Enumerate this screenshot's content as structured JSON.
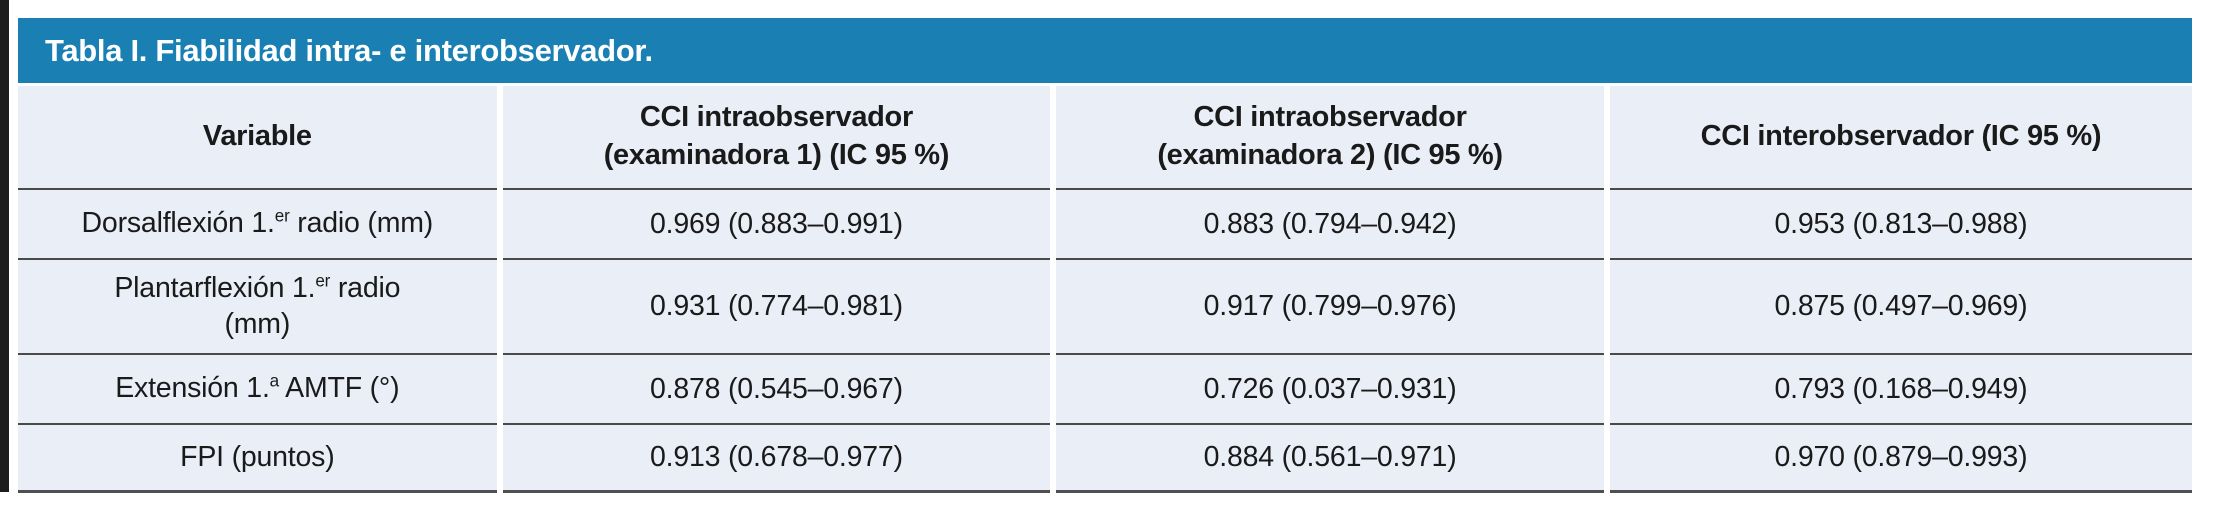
{
  "title": "Tabla I. Fiabilidad intra- e interobservador.",
  "colors": {
    "title_bar_bg": "#1a7fb2",
    "title_text": "#ffffff",
    "cell_bg": "#e9eef7",
    "rule": "#4a4a4a",
    "text": "#1a1a1a"
  },
  "table": {
    "headers": [
      {
        "line1": "Variable",
        "line2": ""
      },
      {
        "line1": "CCI intraobservador",
        "line2": "(examinadora 1) (IC 95 %)"
      },
      {
        "line1": "CCI intraobservador",
        "line2": "(examinadora 2) (IC 95 %)"
      },
      {
        "line1": "CCI interobservador (IC 95 %)",
        "line2": ""
      }
    ],
    "rows": [
      {
        "variable": {
          "pre": "Dorsalflexión 1.",
          "sup": "er",
          "post": " radio (mm)",
          "line2": ""
        },
        "values": [
          "0.969 (0.883–0.991)",
          "0.883 (0.794–0.942)",
          "0.953 (0.813–0.988)"
        ]
      },
      {
        "variable": {
          "pre": "Plantarflexión 1.",
          "sup": "er",
          "post": " radio",
          "line2": "(mm)"
        },
        "values": [
          "0.931 (0.774–0.981)",
          "0.917 (0.799–0.976)",
          "0.875 (0.497–0.969)"
        ]
      },
      {
        "variable": {
          "pre": "Extensión 1.",
          "sup": "a",
          "post": " AMTF (°)",
          "line2": ""
        },
        "values": [
          "0.878 (0.545–0.967)",
          "0.726 (0.037–0.931)",
          "0.793 (0.168–0.949)"
        ]
      },
      {
        "variable": {
          "pre": "FPI (puntos)",
          "sup": "",
          "post": "",
          "line2": ""
        },
        "values": [
          "0.913 (0.678–0.977)",
          "0.884 (0.561–0.971)",
          "0.970 (0.879–0.993)"
        ]
      }
    ]
  },
  "chart_data": {
    "type": "table",
    "title": "Tabla I. Fiabilidad intra- e interobservador.",
    "columns": [
      "Variable",
      "CCI intraobservador (examinadora 1) (IC 95 %)",
      "CCI intraobservador (examinadora 2) (IC 95 %)",
      "CCI interobservador (IC 95 %)"
    ],
    "rows": [
      [
        "Dorsalflexión 1.er radio (mm)",
        "0.969 (0.883–0.991)",
        "0.883 (0.794–0.942)",
        "0.953 (0.813–0.988)"
      ],
      [
        "Plantarflexión 1.er radio (mm)",
        "0.931 (0.774–0.981)",
        "0.917 (0.799–0.976)",
        "0.875 (0.497–0.969)"
      ],
      [
        "Extensión 1.a AMTF (°)",
        "0.878 (0.545–0.967)",
        "0.726 (0.037–0.931)",
        "0.793 (0.168–0.949)"
      ],
      [
        "FPI (puntos)",
        "0.913 (0.678–0.977)",
        "0.884 (0.561–0.971)",
        "0.970 (0.879–0.993)"
      ]
    ]
  }
}
